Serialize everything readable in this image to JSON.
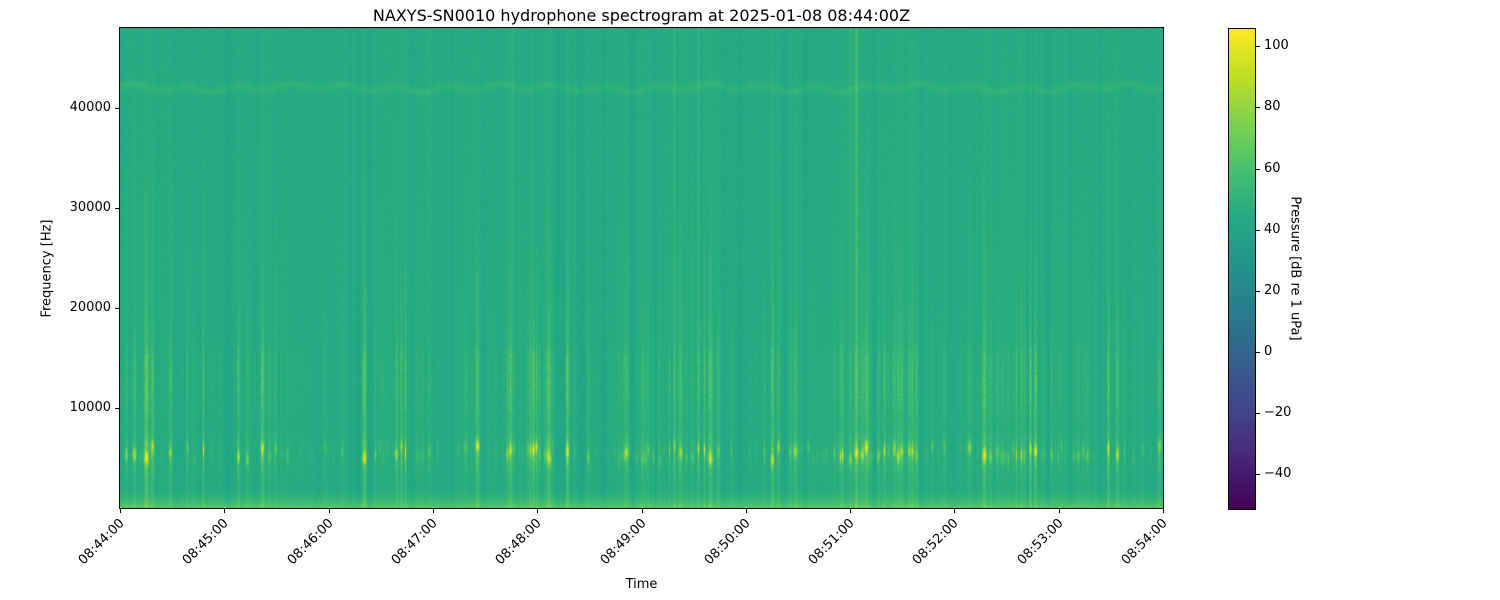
{
  "figure": {
    "title": "NAXYS-SN0010 hydrophone spectrogram at 2025-01-08 08:44:00Z"
  },
  "chart_data": {
    "type": "heatmap",
    "subtype": "spectrogram",
    "title": "NAXYS-SN0010 hydrophone spectrogram at 2025-01-08 08:44:00Z",
    "xlabel": "Time",
    "ylabel": "Frequency [Hz]",
    "x_ticks": [
      "08:44:00",
      "08:45:00",
      "08:46:00",
      "08:47:00",
      "08:48:00",
      "08:49:00",
      "08:50:00",
      "08:51:00",
      "08:52:00",
      "08:53:00",
      "08:54:00"
    ],
    "x_tick_rotation_deg": 45,
    "x_tick_interval_seconds": 60,
    "y_ticks": [
      10000,
      20000,
      30000,
      40000
    ],
    "y_tick_labels": [
      "10000",
      "20000",
      "30000",
      "40000"
    ],
    "ylim": [
      0,
      48000
    ],
    "grid": false,
    "colormap": "viridis",
    "colormap_stops": [
      "#440154",
      "#482475",
      "#414487",
      "#355f8d",
      "#2a788e",
      "#21918c",
      "#22a884",
      "#44bf70",
      "#7ad151",
      "#bddf26",
      "#fde725"
    ],
    "colorbar": {
      "label": "Pressure [dB re 1 uPa]",
      "ticks": [
        100,
        80,
        60,
        40,
        20,
        0,
        -20,
        -40
      ],
      "tick_labels": [
        "100",
        "80",
        "60",
        "40",
        "20",
        "0",
        "−20",
        "−40"
      ],
      "vmin": -51,
      "vmax": 106,
      "position": "right"
    },
    "content": {
      "background_level_db": 45,
      "low_band": {
        "f_max_hz": 2200,
        "peak_level_db": 64,
        "description": "continuous bright yellow-green noise strip below ~2 kHz"
      },
      "click_band": {
        "f_center_hz": 5500,
        "f_halfwidth_hz": 700,
        "peak_level_db": 86,
        "description": "bright impulsive dashes near 5-6 kHz"
      },
      "mid_band": {
        "f_lo_hz": 9500,
        "f_hi_hz": 16000,
        "typical_level_db": 58,
        "description": "dense lighter-green vertical streak band"
      },
      "tonal": {
        "f_center_hz": 42000,
        "level_db": 50,
        "wavy": true,
        "description": "faint wavy tonal line near 42 kHz"
      },
      "transients": "broadband vertical striations recurring every few seconds across full record"
    }
  }
}
